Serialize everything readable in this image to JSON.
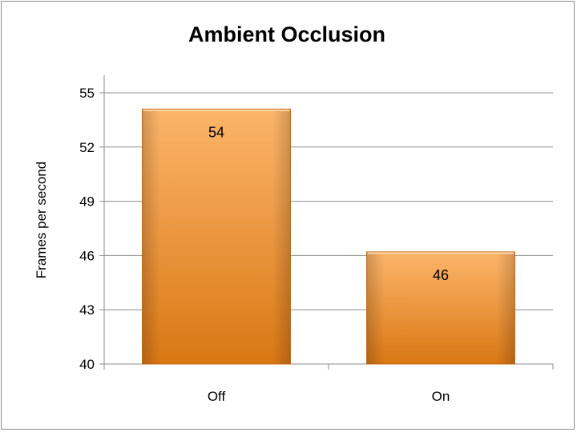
{
  "chart_data": {
    "type": "bar",
    "title": "Ambient Occlusion",
    "xlabel": "",
    "ylabel": "Frames per second",
    "categories": [
      "Off",
      "On"
    ],
    "values": [
      54.1,
      46.2
    ],
    "data_labels": [
      "54",
      "46"
    ],
    "yticks": [
      40,
      43,
      46,
      49,
      52,
      55
    ],
    "ylim": [
      40,
      55
    ],
    "grid": true,
    "legend": "none",
    "bar_color": "#f7941d",
    "bar_color_light": "#fcb56a",
    "bar_color_dark": "#d97714"
  }
}
